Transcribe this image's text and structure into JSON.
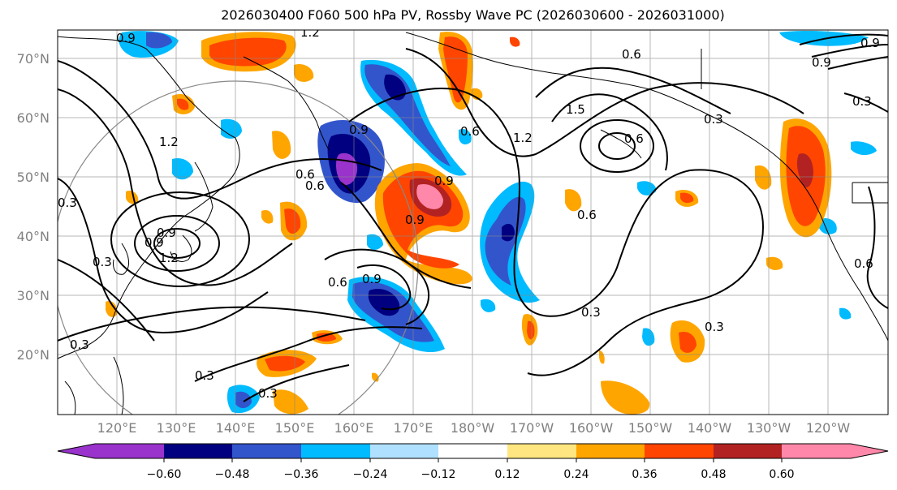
{
  "title": "2026030400 F060 500 hPa PV, Rossby Wave PC (2026030600 - 2026031000)",
  "axes": {
    "lat_labels": [
      "70°N",
      "60°N",
      "50°N",
      "40°N",
      "30°N",
      "20°N"
    ],
    "lon_labels": [
      "120°E",
      "130°E",
      "140°E",
      "150°E",
      "160°E",
      "170°E",
      "180°W",
      "170°W",
      "160°W",
      "150°W",
      "140°W",
      "130°W",
      "120°W"
    ]
  },
  "colorbar": {
    "ticks": [
      "−0.60",
      "−0.48",
      "−0.36",
      "−0.24",
      "−0.12",
      "0.12",
      "0.24",
      "0.36",
      "0.48",
      "0.60"
    ],
    "colors": [
      "#9933cc",
      "#000080",
      "#3355cc",
      "#00bbff",
      "#b0e0ff",
      "#ffffff",
      "#ffe680",
      "#ffa500",
      "#ff4500",
      "#b22222",
      "#ff88aa"
    ]
  },
  "contour_labels": [
    "0.9",
    "1.2",
    "0.6",
    "1.2",
    "0.9",
    "1.2",
    "0.6",
    "0.3",
    "0.3",
    "0.6",
    "0.9",
    "0.6",
    "0.9",
    "0.6",
    "0.9",
    "1.2",
    "0.9",
    "1.5",
    "0.3",
    "0.9",
    "0.6",
    "0.3",
    "0.3",
    "0.3",
    "0.6",
    "0.9",
    "0.3",
    "0.3",
    "0.9",
    "0.3",
    "0.6"
  ]
}
